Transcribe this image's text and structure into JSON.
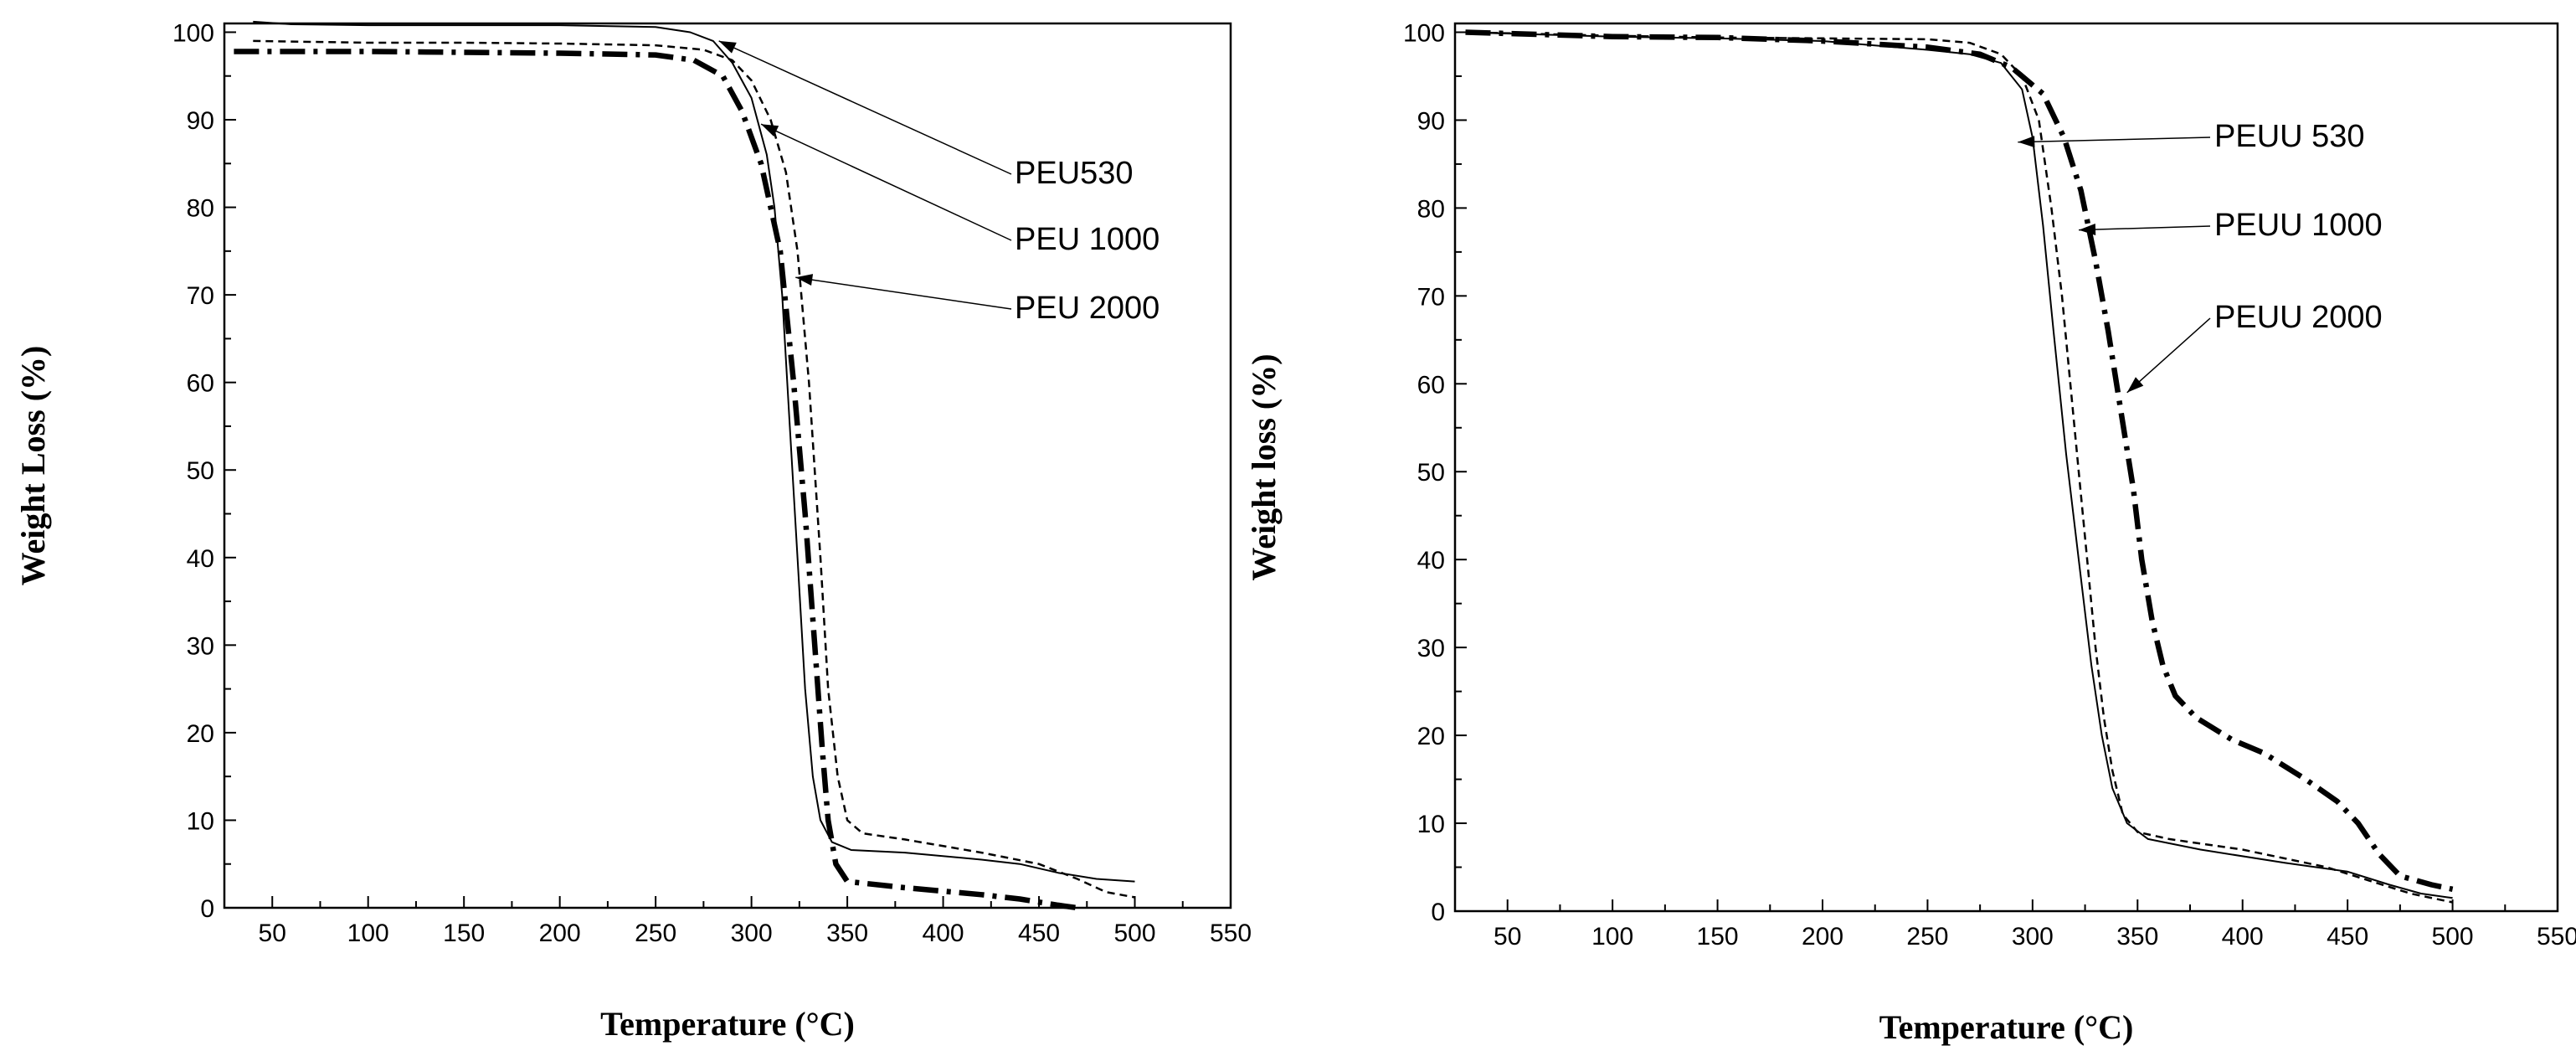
{
  "colors": {
    "background": "#ffffff",
    "ink": "#000000"
  },
  "chart_data": [
    {
      "type": "line",
      "title": "",
      "xlabel": "Temperature (°C)",
      "ylabel": "Weight Loss (%)",
      "xlim": [
        25,
        550
      ],
      "ylim": [
        0,
        101
      ],
      "xticks": [
        50,
        100,
        150,
        200,
        250,
        300,
        350,
        400,
        450,
        500,
        550
      ],
      "yticks": [
        0,
        10,
        20,
        30,
        40,
        50,
        60,
        70,
        80,
        90,
        100
      ],
      "grid": false,
      "legend": "none",
      "series": [
        {
          "style": "solid-thin",
          "points": [
            [
              40,
              101.2
            ],
            [
              60,
              100.9
            ],
            [
              100,
              100.8
            ],
            [
              150,
              100.8
            ],
            [
              200,
              100.8
            ],
            [
              250,
              100.6
            ],
            [
              268,
              100.0
            ],
            [
              280,
              99.0
            ],
            [
              290,
              96.5
            ],
            [
              300,
              92.5
            ],
            [
              308,
              86
            ],
            [
              312,
              80
            ],
            [
              316,
              70
            ],
            [
              320,
              55
            ],
            [
              324,
              40
            ],
            [
              328,
              25
            ],
            [
              332,
              15
            ],
            [
              336,
              10
            ],
            [
              342,
              7.5
            ],
            [
              352,
              6.6
            ],
            [
              380,
              6.3
            ],
            [
              420,
              5.5
            ],
            [
              440,
              5.0
            ],
            [
              460,
              4.0
            ],
            [
              480,
              3.3
            ],
            [
              500,
              3.0
            ]
          ]
        },
        {
          "style": "dashed-thin",
          "points": [
            [
              40,
              99.0
            ],
            [
              100,
              98.8
            ],
            [
              150,
              98.8
            ],
            [
              200,
              98.7
            ],
            [
              250,
              98.5
            ],
            [
              275,
              98.0
            ],
            [
              290,
              96.8
            ],
            [
              300,
              94.5
            ],
            [
              310,
              90
            ],
            [
              318,
              84
            ],
            [
              324,
              75
            ],
            [
              330,
              60
            ],
            [
              336,
              40
            ],
            [
              340,
              25
            ],
            [
              345,
              15
            ],
            [
              350,
              10
            ],
            [
              358,
              8.5
            ],
            [
              380,
              7.8
            ],
            [
              420,
              6.3
            ],
            [
              450,
              5.0
            ],
            [
              470,
              3.3
            ],
            [
              485,
              1.8
            ],
            [
              500,
              1.2
            ]
          ]
        },
        {
          "style": "dashdot-bold",
          "points": [
            [
              30,
              97.8
            ],
            [
              100,
              97.8
            ],
            [
              150,
              97.7
            ],
            [
              200,
              97.6
            ],
            [
              250,
              97.4
            ],
            [
              270,
              96.8
            ],
            [
              285,
              95.0
            ],
            [
              295,
              91.0
            ],
            [
              305,
              85
            ],
            [
              315,
              75
            ],
            [
              322,
              60
            ],
            [
              328,
              45
            ],
            [
              333,
              30
            ],
            [
              337,
              18
            ],
            [
              340,
              10
            ],
            [
              344,
              5
            ],
            [
              350,
              3.0
            ],
            [
              380,
              2.3
            ],
            [
              420,
              1.5
            ],
            [
              440,
              1.0
            ],
            [
              460,
              0.3
            ],
            [
              470,
              0
            ]
          ]
        }
      ],
      "annotations": [
        {
          "label": "PEU530",
          "target": [
            283,
            99.0
          ]
        },
        {
          "label": "PEU 1000",
          "target": [
            305,
            89.5
          ]
        },
        {
          "label": "PEU 2000",
          "target": [
            323,
            72.0
          ]
        }
      ]
    },
    {
      "type": "line",
      "title": "",
      "xlabel": "Temperature (°C)",
      "ylabel": "Weight loss (%)",
      "xlim": [
        25,
        550
      ],
      "ylim": [
        0,
        101
      ],
      "xticks": [
        50,
        100,
        150,
        200,
        250,
        300,
        350,
        400,
        450,
        500,
        550
      ],
      "yticks": [
        0,
        10,
        20,
        30,
        40,
        50,
        60,
        70,
        80,
        90,
        100
      ],
      "grid": false,
      "legend": "none",
      "series": [
        {
          "style": "solid-thin",
          "points": [
            [
              30,
              100
            ],
            [
              100,
              99.5
            ],
            [
              150,
              99.3
            ],
            [
              200,
              99.0
            ],
            [
              250,
              98.0
            ],
            [
              270,
              97.5
            ],
            [
              285,
              96.5
            ],
            [
              295,
              93.5
            ],
            [
              300,
              88
            ],
            [
              305,
              78
            ],
            [
              310,
              66
            ],
            [
              316,
              52
            ],
            [
              322,
              40
            ],
            [
              328,
              28
            ],
            [
              333,
              20
            ],
            [
              338,
              14
            ],
            [
              345,
              10
            ],
            [
              355,
              8.2
            ],
            [
              380,
              7.0
            ],
            [
              420,
              5.5
            ],
            [
              450,
              4.5
            ],
            [
              470,
              3.0
            ],
            [
              485,
              2.0
            ],
            [
              500,
              1.5
            ]
          ]
        },
        {
          "style": "dashed-thin",
          "points": [
            [
              30,
              100
            ],
            [
              100,
              99.6
            ],
            [
              150,
              99.4
            ],
            [
              200,
              99.3
            ],
            [
              250,
              99.2
            ],
            [
              270,
              98.8
            ],
            [
              285,
              97.5
            ],
            [
              295,
              95.0
            ],
            [
              303,
              90
            ],
            [
              309,
              80
            ],
            [
              314,
              70
            ],
            [
              318,
              60
            ],
            [
              322,
              50
            ],
            [
              326,
              40
            ],
            [
              330,
              30
            ],
            [
              334,
              22
            ],
            [
              338,
              16
            ],
            [
              343,
              11
            ],
            [
              350,
              9.0
            ],
            [
              365,
              8.2
            ],
            [
              400,
              7.0
            ],
            [
              440,
              5.0
            ],
            [
              460,
              3.5
            ],
            [
              480,
              2.0
            ],
            [
              500,
              1.0
            ]
          ]
        },
        {
          "style": "dashdot-bold",
          "points": [
            [
              30,
              100
            ],
            [
              100,
              99.5
            ],
            [
              150,
              99.4
            ],
            [
              200,
              99.0
            ],
            [
              250,
              98.3
            ],
            [
              275,
              97.5
            ],
            [
              290,
              96.0
            ],
            [
              305,
              93.0
            ],
            [
              315,
              88
            ],
            [
              323,
              82
            ],
            [
              330,
              74
            ],
            [
              336,
              66
            ],
            [
              342,
              57
            ],
            [
              348,
              48
            ],
            [
              352,
              40
            ],
            [
              357,
              33
            ],
            [
              362,
              28
            ],
            [
              368,
              24.5
            ],
            [
              378,
              22
            ],
            [
              395,
              19.5
            ],
            [
              410,
              18
            ],
            [
              430,
              15
            ],
            [
              445,
              12.5
            ],
            [
              455,
              10
            ],
            [
              465,
              6.5
            ],
            [
              475,
              4.0
            ],
            [
              490,
              3.0
            ],
            [
              500,
              2.5
            ]
          ]
        }
      ],
      "annotations": [
        {
          "label": "PEUU 530",
          "target": [
            293,
            87.5
          ]
        },
        {
          "label": "PEUU 1000",
          "target": [
            322,
            77.5
          ]
        },
        {
          "label": "PEUU 2000",
          "target": [
            345,
            59.0
          ]
        }
      ]
    }
  ]
}
